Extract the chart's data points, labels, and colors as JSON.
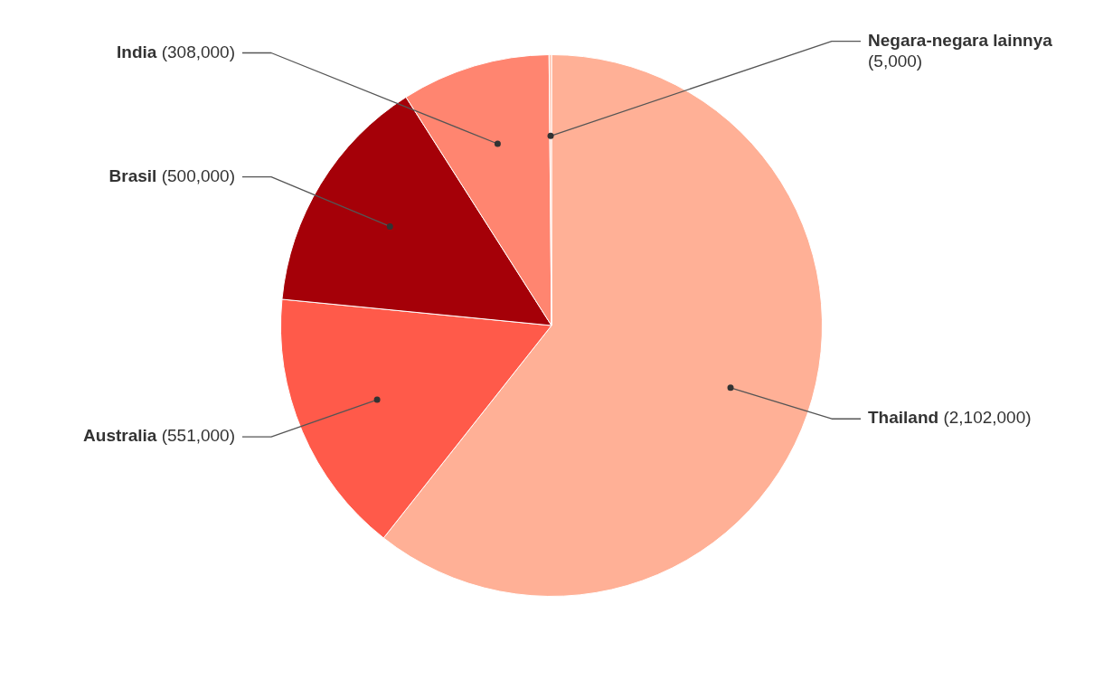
{
  "chart_data": {
    "type": "pie",
    "categories": [
      "Thailand",
      "Australia",
      "Brasil",
      "India",
      "Negara-negara lainnya"
    ],
    "values": [
      2102000,
      551000,
      500000,
      308000,
      5000
    ],
    "colors": [
      "#ffb096",
      "#ff5a4a",
      "#a50008",
      "#ff8570",
      "#ffc2ad"
    ],
    "value_labels": [
      "(2,102,000)",
      "(551,000)",
      "(500,000)",
      "(308,000)",
      "(5,000)"
    ],
    "legend": false
  }
}
